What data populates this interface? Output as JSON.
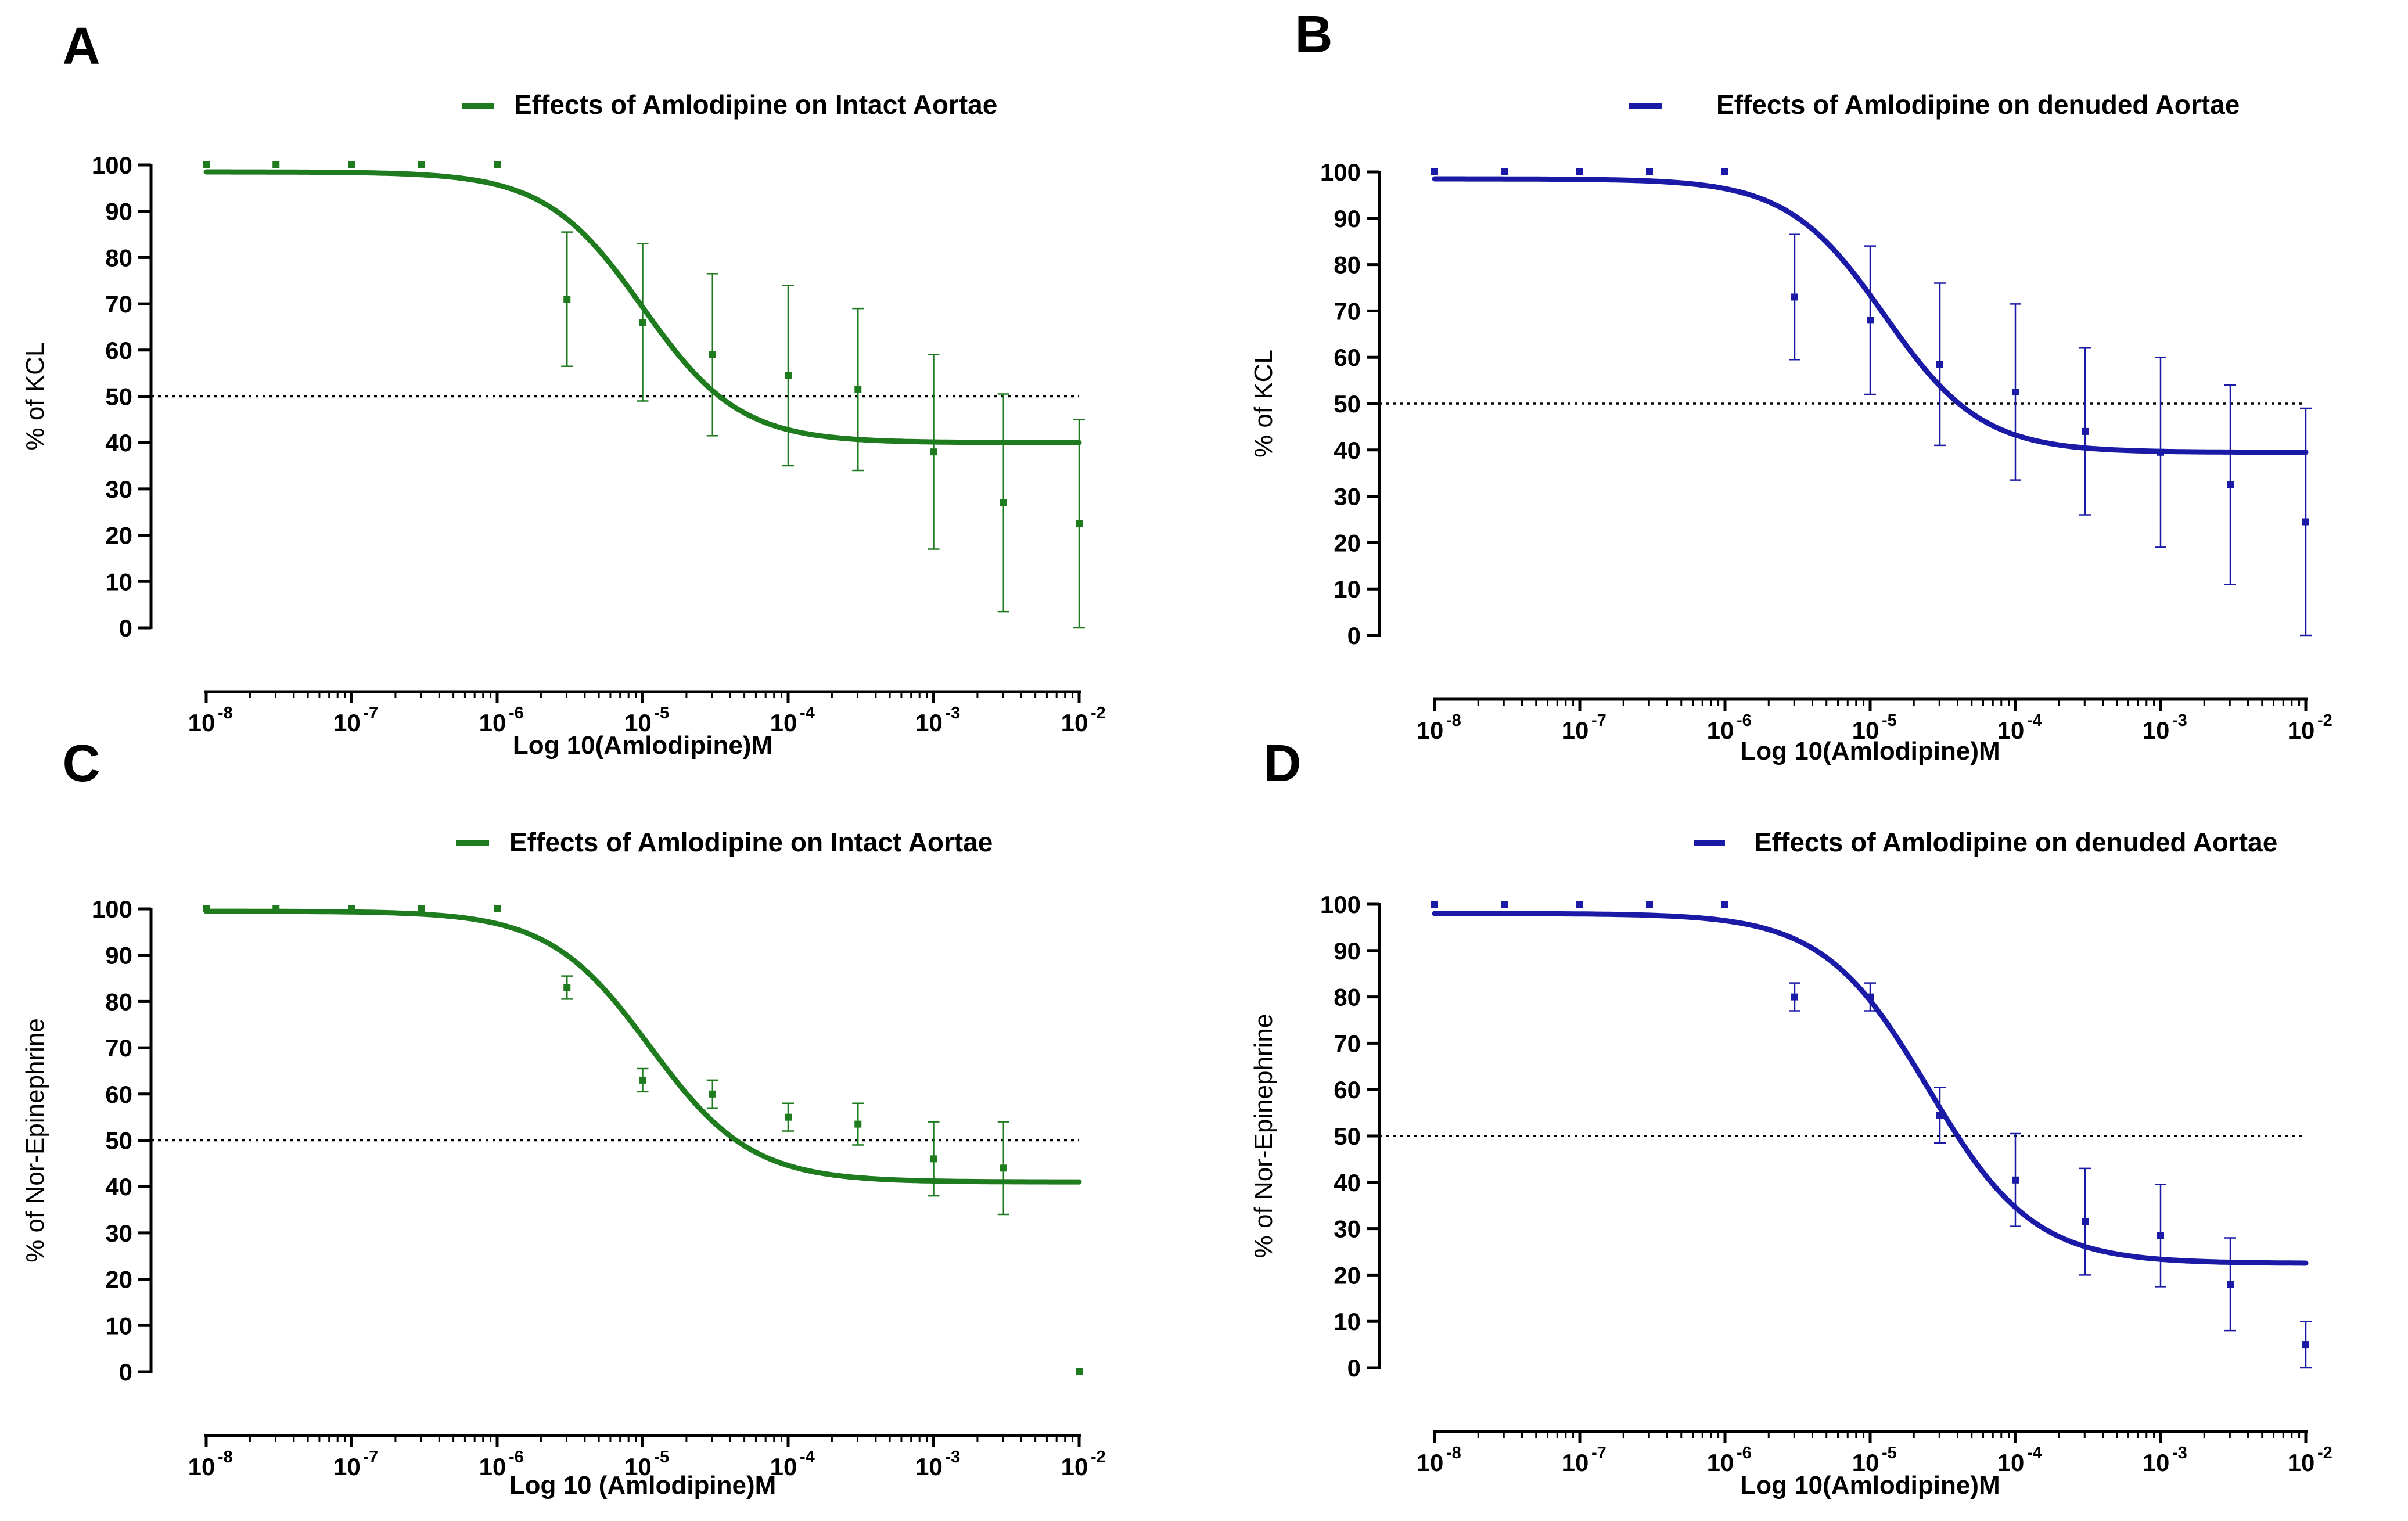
{
  "chart_data": [
    {
      "type": "line",
      "panel": "A",
      "color": "#1e7b1e",
      "legend": "Effects of Amlodipine on Intact Aortae",
      "xlabel": "Log 10(Amlodipine)M",
      "ylabel": "% of KCL",
      "x_scale": "log",
      "xlim": [
        "1e-8",
        "1e-2"
      ],
      "ylim": [
        0,
        100
      ],
      "yticks": [
        0,
        10,
        20,
        30,
        40,
        50,
        60,
        70,
        80,
        90,
        100
      ],
      "reference_line": 50,
      "fit": {
        "top": 98.5,
        "bottom": 40,
        "log_ec50": -5.0,
        "hill": 1.3
      },
      "points": [
        {
          "x": -8.0,
          "y": 100,
          "err": 0
        },
        {
          "x": -7.52,
          "y": 100,
          "err": 0
        },
        {
          "x": -7.0,
          "y": 100,
          "err": 0
        },
        {
          "x": -6.52,
          "y": 100,
          "err": 0
        },
        {
          "x": -6.0,
          "y": 100,
          "err": 0
        },
        {
          "x": -5.52,
          "y": 71,
          "err": 14.5
        },
        {
          "x": -5.0,
          "y": 66,
          "err": 17
        },
        {
          "x": -4.52,
          "y": 59,
          "err": 17.5
        },
        {
          "x": -4.0,
          "y": 54.5,
          "err": 19.5
        },
        {
          "x": -3.52,
          "y": 51.5,
          "err": 17.5
        },
        {
          "x": -3.0,
          "y": 38,
          "err": 21
        },
        {
          "x": -2.52,
          "y": 27,
          "err": 23.5
        },
        {
          "x": -2.0,
          "y": 22.5,
          "err": 22.5
        }
      ]
    },
    {
      "type": "line",
      "panel": "B",
      "color": "#1a1aa6",
      "legend": "Effects of Amlodipine on denuded Aortae",
      "xlabel": "Log 10(Amlodipine)M",
      "ylabel": "% of KCL",
      "x_scale": "log",
      "xlim": [
        "1e-8",
        "1e-2"
      ],
      "ylim": [
        0,
        100
      ],
      "yticks": [
        0,
        10,
        20,
        30,
        40,
        50,
        60,
        70,
        80,
        90,
        100
      ],
      "reference_line": 50,
      "fit": {
        "top": 98.5,
        "bottom": 39.5,
        "log_ec50": -4.9,
        "hill": 1.3
      },
      "points": [
        {
          "x": -8.0,
          "y": 100,
          "err": 0
        },
        {
          "x": -7.52,
          "y": 100,
          "err": 0
        },
        {
          "x": -7.0,
          "y": 100,
          "err": 0
        },
        {
          "x": -6.52,
          "y": 100,
          "err": 0
        },
        {
          "x": -6.0,
          "y": 100,
          "err": 0
        },
        {
          "x": -5.52,
          "y": 73,
          "err": 13.5
        },
        {
          "x": -5.0,
          "y": 68,
          "err": 16
        },
        {
          "x": -4.52,
          "y": 58.5,
          "err": 17.5
        },
        {
          "x": -4.0,
          "y": 52.5,
          "err": 19
        },
        {
          "x": -3.52,
          "y": 44,
          "err": 18
        },
        {
          "x": -3.0,
          "y": 39.5,
          "err": 20.5
        },
        {
          "x": -2.52,
          "y": 32.5,
          "err": 21.5
        },
        {
          "x": -2.0,
          "y": 24.5,
          "err": 24.5
        }
      ]
    },
    {
      "type": "line",
      "panel": "C",
      "color": "#1e7b1e",
      "legend": "Effects of Amlodipine on Intact Aortae",
      "xlabel": "Log 10 (Amlodipine)M",
      "ylabel": "% of Nor-Epinephrine",
      "x_scale": "log",
      "xlim": [
        "1e-8",
        "1e-2"
      ],
      "ylim": [
        0,
        100
      ],
      "yticks": [
        0,
        10,
        20,
        30,
        40,
        50,
        60,
        70,
        80,
        90,
        100
      ],
      "reference_line": 50,
      "fit": {
        "top": 99.5,
        "bottom": 41,
        "log_ec50": -4.95,
        "hill": 1.25
      },
      "points": [
        {
          "x": -8.0,
          "y": 100,
          "err": 0
        },
        {
          "x": -7.52,
          "y": 100,
          "err": 0
        },
        {
          "x": -7.0,
          "y": 100,
          "err": 0
        },
        {
          "x": -6.52,
          "y": 100,
          "err": 0
        },
        {
          "x": -6.0,
          "y": 100,
          "err": 0
        },
        {
          "x": -5.52,
          "y": 83,
          "err": 2.5
        },
        {
          "x": -5.0,
          "y": 63,
          "err": 2.5
        },
        {
          "x": -4.52,
          "y": 60,
          "err": 3
        },
        {
          "x": -4.0,
          "y": 55,
          "err": 3
        },
        {
          "x": -3.52,
          "y": 53.5,
          "err": 4.5
        },
        {
          "x": -3.0,
          "y": 46,
          "err": 8
        },
        {
          "x": -2.52,
          "y": 44,
          "err": 10
        },
        {
          "x": -2.0,
          "y": 0,
          "err": 0
        }
      ]
    },
    {
      "type": "line",
      "panel": "D",
      "color": "#1a1aa6",
      "legend": "Effects of Amlodipine on denuded Aortae",
      "xlabel": "Log 10(Amlodipine)M",
      "ylabel": "% of Nor-Epinephrine",
      "x_scale": "log",
      "xlim": [
        "1e-8",
        "1e-2"
      ],
      "ylim": [
        0,
        100
      ],
      "yticks": [
        0,
        10,
        20,
        30,
        40,
        50,
        60,
        70,
        80,
        90,
        100
      ],
      "reference_line": 50,
      "fit": {
        "top": 98,
        "bottom": 22.5,
        "log_ec50": -4.6,
        "hill": 1.2
      },
      "points": [
        {
          "x": -8.0,
          "y": 100,
          "err": 0
        },
        {
          "x": -7.52,
          "y": 100,
          "err": 0
        },
        {
          "x": -7.0,
          "y": 100,
          "err": 0
        },
        {
          "x": -6.52,
          "y": 100,
          "err": 0
        },
        {
          "x": -6.0,
          "y": 100,
          "err": 0
        },
        {
          "x": -5.52,
          "y": 80,
          "err": 3
        },
        {
          "x": -5.0,
          "y": 80,
          "err": 3
        },
        {
          "x": -4.52,
          "y": 54.5,
          "err": 6
        },
        {
          "x": -4.0,
          "y": 40.5,
          "err": 10
        },
        {
          "x": -3.52,
          "y": 31.5,
          "err": 11.5
        },
        {
          "x": -3.0,
          "y": 28.5,
          "err": 11
        },
        {
          "x": -2.52,
          "y": 18,
          "err": 10
        },
        {
          "x": -2.0,
          "y": 5,
          "err": 5
        }
      ]
    }
  ]
}
